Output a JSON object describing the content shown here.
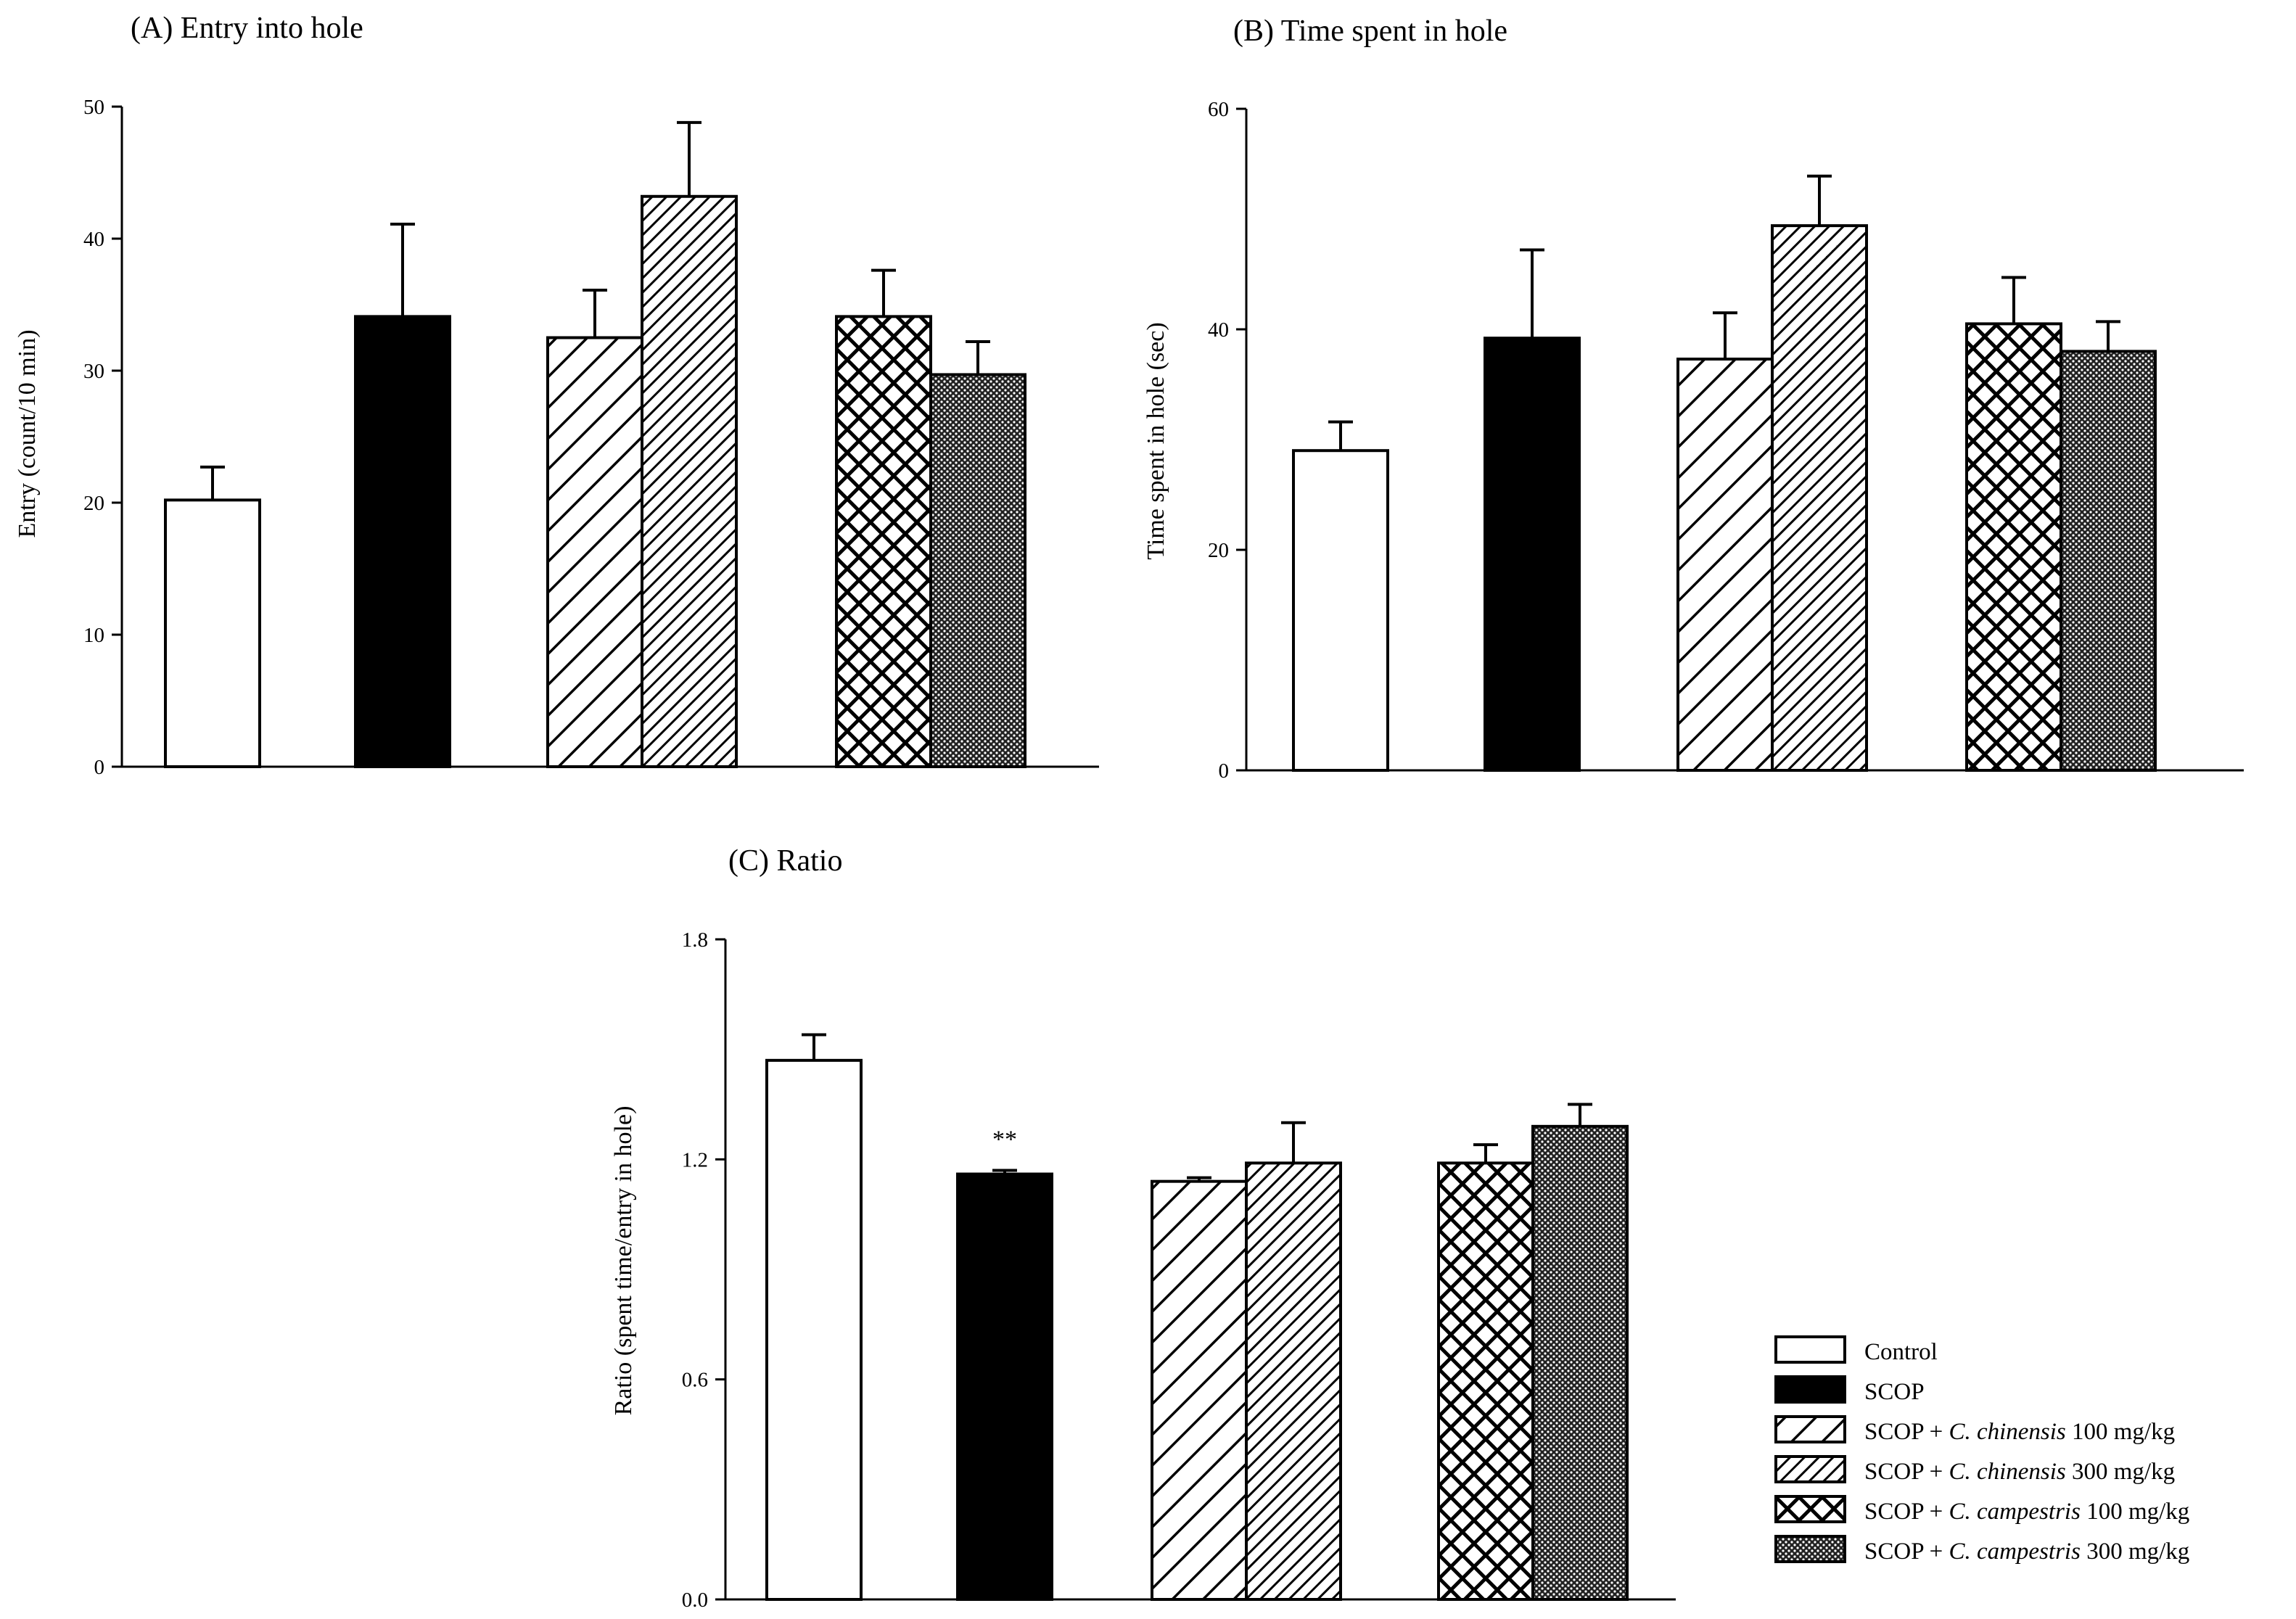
{
  "chart_data": [
    {
      "id": "A",
      "type": "bar",
      "title": "(A) Entry into hole",
      "ylabel": "Entry (count/10 min)",
      "xlabel": "",
      "ylim": [
        0,
        50
      ],
      "yticks": [
        0,
        10,
        20,
        30,
        40,
        50
      ],
      "tick_labels": [
        "0",
        "10",
        "20",
        "30",
        "40",
        "50"
      ],
      "categories": [
        "Control",
        "SCOP",
        "SCOP + C. chinensis 100 mg/kg",
        "SCOP + C. chinensis 300 mg/kg",
        "SCOP + C. campestris 100 mg/kg",
        "SCOP + C. campestris 300 mg/kg"
      ],
      "values": [
        20.2,
        34.1,
        32.5,
        43.2,
        34.1,
        29.7
      ],
      "errors": [
        2.5,
        7.0,
        3.6,
        5.6,
        3.5,
        2.5
      ],
      "annotations": [
        "",
        "",
        "",
        "",
        "",
        ""
      ]
    },
    {
      "id": "B",
      "type": "bar",
      "title": "(B) Time spent in hole",
      "ylabel": "Time spent in hole (sec)",
      "xlabel": "",
      "ylim": [
        0,
        60
      ],
      "yticks": [
        0,
        20,
        40,
        60
      ],
      "tick_labels": [
        "0",
        "20",
        "40",
        "60"
      ],
      "categories": [
        "Control",
        "SCOP",
        "SCOP + C. chinensis 100 mg/kg",
        "SCOP + C. chinensis 300 mg/kg",
        "SCOP + C. campestris 100 mg/kg",
        "SCOP + C. campestris 300 mg/kg"
      ],
      "values": [
        29.0,
        39.2,
        37.3,
        49.4,
        40.5,
        38.0
      ],
      "errors": [
        2.6,
        8.0,
        4.2,
        4.5,
        4.2,
        2.7
      ],
      "annotations": [
        "",
        "",
        "",
        "",
        "",
        ""
      ]
    },
    {
      "id": "C",
      "type": "bar",
      "title": "(C) Ratio",
      "ylabel": "Ratio (spent time/entry in hole)",
      "xlabel": "",
      "ylim": [
        0,
        1.8
      ],
      "yticks": [
        0,
        0.6,
        1.2,
        1.8
      ],
      "tick_labels": [
        "0.0",
        "0.6",
        "1.2",
        "1.8"
      ],
      "categories": [
        "Control",
        "SCOP",
        "SCOP + C. chinensis 100 mg/kg",
        "SCOP + C. chinensis 300 mg/kg",
        "SCOP + C. campestris 100 mg/kg",
        "SCOP + C. campestris 300 mg/kg"
      ],
      "values": [
        1.47,
        1.16,
        1.14,
        1.19,
        1.19,
        1.29
      ],
      "errors": [
        0.07,
        0.01,
        0.01,
        0.11,
        0.05,
        0.06
      ],
      "annotations": [
        "",
        "**",
        "",
        "",
        "",
        ""
      ]
    }
  ],
  "legend": {
    "position": "bottom-right",
    "entries": [
      {
        "pattern": "white",
        "prefix": "Control",
        "species": "",
        "dose": ""
      },
      {
        "pattern": "black",
        "prefix": "SCOP",
        "species": "",
        "dose": ""
      },
      {
        "pattern": "diag-wide",
        "prefix": "SCOP + ",
        "species": "C. chinensis",
        "dose": " 100 mg/kg"
      },
      {
        "pattern": "diag-dense",
        "prefix": "SCOP + ",
        "species": "C. chinensis",
        "dose": " 300 mg/kg"
      },
      {
        "pattern": "cross",
        "prefix": "SCOP + ",
        "species": "C. campestris",
        "dose": " 100 mg/kg"
      },
      {
        "pattern": "dots",
        "prefix": "SCOP + ",
        "species": "C. campestris",
        "dose": " 300 mg/kg"
      }
    ]
  },
  "colors": {
    "ink": "#000000",
    "paper": "#ffffff"
  }
}
